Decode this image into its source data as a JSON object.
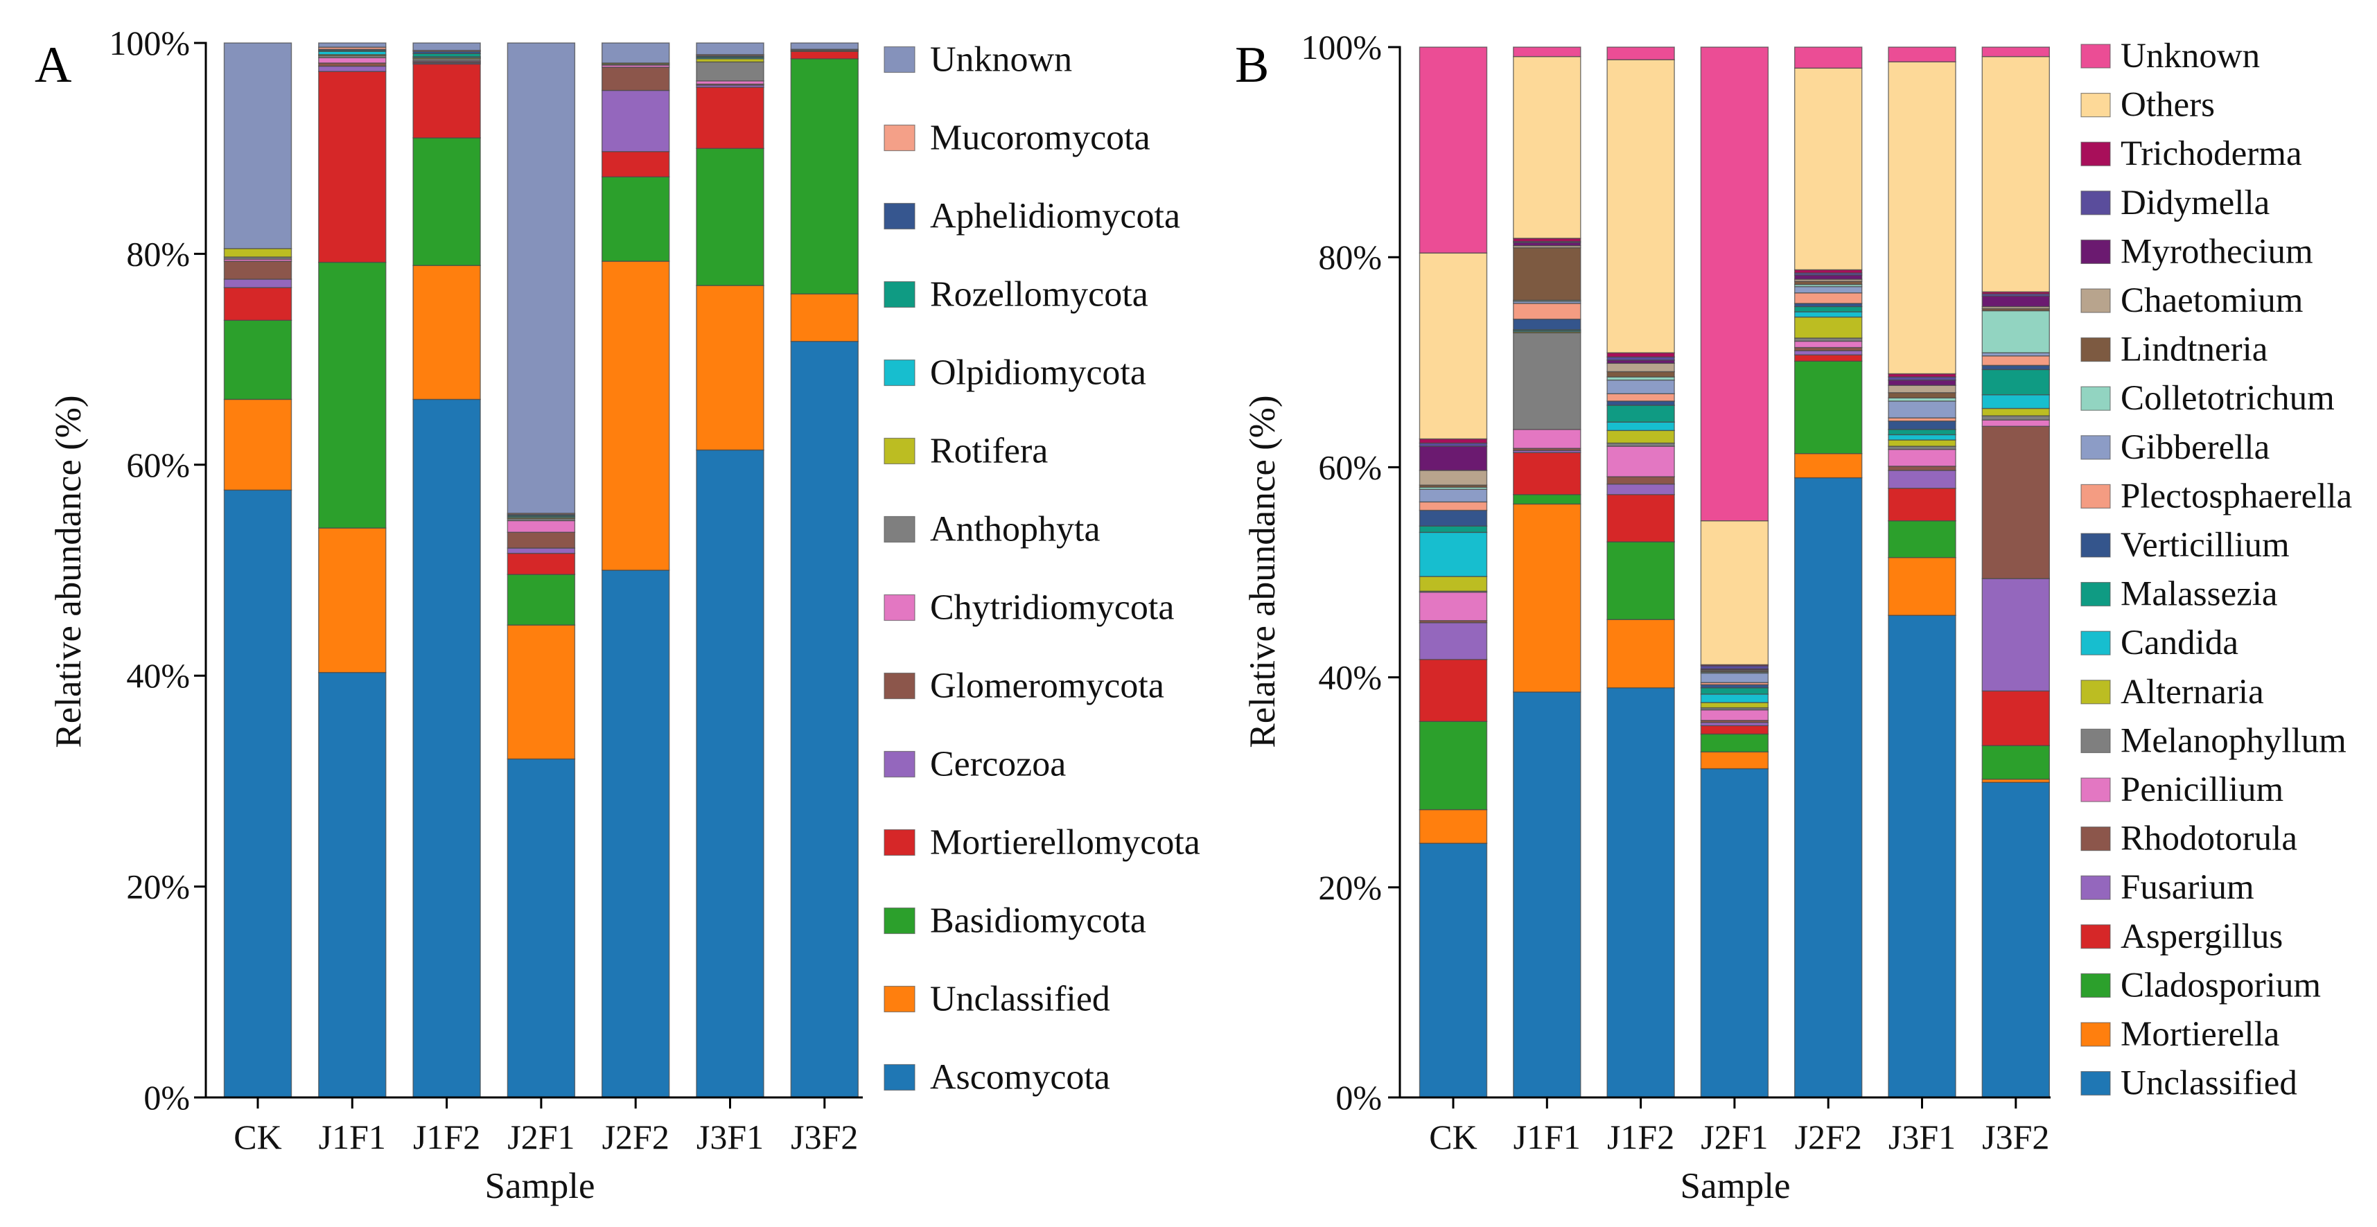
{
  "chart_data": [
    {
      "panel_label": "A",
      "type": "bar",
      "stacked": true,
      "title": "",
      "xlabel": "Sample",
      "ylabel": "Relative abundance (%)",
      "ylim": [
        0,
        100
      ],
      "yticks": [
        0,
        20,
        40,
        60,
        80,
        100
      ],
      "ytick_labels": [
        "0%",
        "20%",
        "40%",
        "60%",
        "80%",
        "100%"
      ],
      "grid": false,
      "legend_position": "right",
      "categories": [
        "CK",
        "J1F1",
        "J1F2",
        "J2F1",
        "J2F2",
        "J3F1",
        "J3F2"
      ],
      "series": [
        {
          "name": "Ascomycota",
          "color": "#1f77b4",
          "values": [
            57.6,
            40.3,
            66.2,
            32.1,
            50.0,
            61.4,
            71.7
          ]
        },
        {
          "name": "Unclassified",
          "color": "#ff7f0e",
          "values": [
            8.6,
            13.7,
            12.7,
            12.7,
            29.3,
            15.6,
            4.5
          ]
        },
        {
          "name": "Basidiomycota",
          "color": "#2ca02c",
          "values": [
            7.5,
            25.2,
            12.1,
            4.8,
            8.0,
            13.0,
            22.3
          ]
        },
        {
          "name": "Mortierellomycota",
          "color": "#d62728",
          "values": [
            3.1,
            18.1,
            7.0,
            2.0,
            2.4,
            5.8,
            0.7
          ]
        },
        {
          "name": "Cercozoa",
          "color": "#9467bd",
          "values": [
            0.8,
            0.5,
            0.1,
            0.5,
            5.8,
            0.2,
            0.0
          ]
        },
        {
          "name": "Glomeromycota",
          "color": "#8c564b",
          "values": [
            1.7,
            0.3,
            0.1,
            1.5,
            2.2,
            0.1,
            0.1
          ]
        },
        {
          "name": "Chytridiomycota",
          "color": "#e377c2",
          "values": [
            0.2,
            0.5,
            0.1,
            1.1,
            0.2,
            0.3,
            0.0
          ]
        },
        {
          "name": "Anthophyta",
          "color": "#7f7f7f",
          "values": [
            0.2,
            0.2,
            0.2,
            0.2,
            0.1,
            1.8,
            0.1
          ]
        },
        {
          "name": "Rotifera",
          "color": "#bcbd22",
          "values": [
            0.8,
            0.1,
            0.1,
            0.1,
            0.1,
            0.3,
            0.0
          ]
        },
        {
          "name": "Olpidiomycota",
          "color": "#17becf",
          "values": [
            0.0,
            0.3,
            0.1,
            0.1,
            0.0,
            0.1,
            0.0
          ]
        },
        {
          "name": "Rozellomycota",
          "color": "#0f9b83",
          "values": [
            0.0,
            0.1,
            0.3,
            0.1,
            0.0,
            0.1,
            0.0
          ]
        },
        {
          "name": "Aphelidiomycota",
          "color": "#36568f",
          "values": [
            0.0,
            0.1,
            0.2,
            0.1,
            0.0,
            0.1,
            0.0
          ]
        },
        {
          "name": "Mucoromycota",
          "color": "#f4a088",
          "values": [
            0.0,
            0.2,
            0.1,
            0.1,
            0.0,
            0.1,
            0.0
          ]
        },
        {
          "name": "Unknown",
          "color": "#8592bb",
          "values": [
            19.5,
            0.4,
            0.7,
            44.6,
            1.9,
            1.1,
            0.6
          ]
        }
      ]
    },
    {
      "panel_label": "B",
      "type": "bar",
      "stacked": true,
      "title": "",
      "xlabel": "Sample",
      "ylabel": "Relative abundance (%)",
      "ylim": [
        0,
        100
      ],
      "yticks": [
        0,
        20,
        40,
        60,
        80,
        100
      ],
      "ytick_labels": [
        "0%",
        "20%",
        "40%",
        "60%",
        "80%",
        "100%"
      ],
      "grid": false,
      "legend_position": "right",
      "categories": [
        "CK",
        "J1F1",
        "J1F2",
        "J2F1",
        "J2F2",
        "J3F1",
        "J3F2"
      ],
      "series": [
        {
          "name": "Unclassified",
          "color": "#1f77b4",
          "values": [
            24.2,
            38.6,
            39.0,
            31.3,
            59.0,
            45.9,
            30.0
          ]
        },
        {
          "name": "Mortierella",
          "color": "#ff7f0e",
          "values": [
            3.2,
            17.9,
            6.5,
            1.6,
            2.3,
            5.5,
            0.3
          ]
        },
        {
          "name": "Cladosporium",
          "color": "#2ca02c",
          "values": [
            8.4,
            0.9,
            7.4,
            1.7,
            8.8,
            3.5,
            3.2
          ]
        },
        {
          "name": "Aspergillus",
          "color": "#d62728",
          "values": [
            5.9,
            4.0,
            4.5,
            0.8,
            0.6,
            3.1,
            5.2
          ]
        },
        {
          "name": "Fusarium",
          "color": "#9467bd",
          "values": [
            3.5,
            0.2,
            1.0,
            0.3,
            0.4,
            1.7,
            10.7
          ]
        },
        {
          "name": "Rhodotorula",
          "color": "#8c564b",
          "values": [
            0.2,
            0.2,
            0.7,
            0.2,
            0.3,
            0.4,
            14.5
          ]
        },
        {
          "name": "Penicillium",
          "color": "#e377c2",
          "values": [
            2.7,
            1.8,
            2.9,
            1.0,
            0.6,
            1.6,
            0.6
          ]
        },
        {
          "name": "Melanophyllum",
          "color": "#7f7f7f",
          "values": [
            0.1,
            9.2,
            0.3,
            0.2,
            0.3,
            0.3,
            0.4
          ]
        },
        {
          "name": "Alternaria",
          "color": "#bcbd22",
          "values": [
            1.4,
            0.1,
            1.2,
            0.5,
            2.0,
            0.6,
            0.7
          ]
        },
        {
          "name": "Candida",
          "color": "#17becf",
          "values": [
            4.2,
            0.1,
            0.8,
            0.8,
            0.5,
            0.5,
            1.3
          ]
        },
        {
          "name": "Malassezia",
          "color": "#0f9b83",
          "values": [
            0.6,
            0.1,
            1.6,
            0.6,
            0.5,
            0.5,
            2.4
          ]
        },
        {
          "name": "Verticillium",
          "color": "#34558c",
          "values": [
            1.5,
            1.0,
            0.4,
            0.3,
            0.3,
            0.8,
            0.4
          ]
        },
        {
          "name": "Plectosphaerella",
          "color": "#f49c82",
          "values": [
            0.8,
            1.5,
            0.7,
            0.2,
            1.0,
            0.3,
            0.9
          ]
        },
        {
          "name": "Gibberella",
          "color": "#8c9cc6",
          "values": [
            1.2,
            0.2,
            1.3,
            0.9,
            0.6,
            1.6,
            0.3
          ]
        },
        {
          "name": "Colletotrichum",
          "color": "#92d4c1",
          "values": [
            0.2,
            0.1,
            0.3,
            0.1,
            0.2,
            0.3,
            4.0
          ]
        },
        {
          "name": "Lindtneria",
          "color": "#7d5a41",
          "values": [
            0.2,
            5.0,
            0.5,
            0.1,
            0.3,
            0.5,
            0.2
          ]
        },
        {
          "name": "Chaetomium",
          "color": "#b8a48d",
          "values": [
            1.4,
            0.2,
            0.8,
            0.1,
            0.2,
            0.7,
            0.2
          ]
        },
        {
          "name": "Myrothecium",
          "color": "#6b1a70",
          "values": [
            2.3,
            0.3,
            0.3,
            0.1,
            0.4,
            0.5,
            1.0
          ]
        },
        {
          "name": "Didymella",
          "color": "#5a4d9c",
          "values": [
            0.3,
            0.1,
            0.3,
            0.3,
            0.2,
            0.3,
            0.2
          ]
        },
        {
          "name": "Trichoderma",
          "color": "#a80f5a",
          "values": [
            0.4,
            0.3,
            0.4,
            0.1,
            0.3,
            0.3,
            0.2
          ]
        },
        {
          "name": "Others",
          "color": "#fdd998",
          "values": [
            17.7,
            17.3,
            27.9,
            13.7,
            19.2,
            29.7,
            22.4
          ]
        },
        {
          "name": "Unknown",
          "color": "#eb4d95",
          "values": [
            19.6,
            0.9,
            1.2,
            45.1,
            2.0,
            1.4,
            0.9
          ]
        }
      ]
    }
  ]
}
